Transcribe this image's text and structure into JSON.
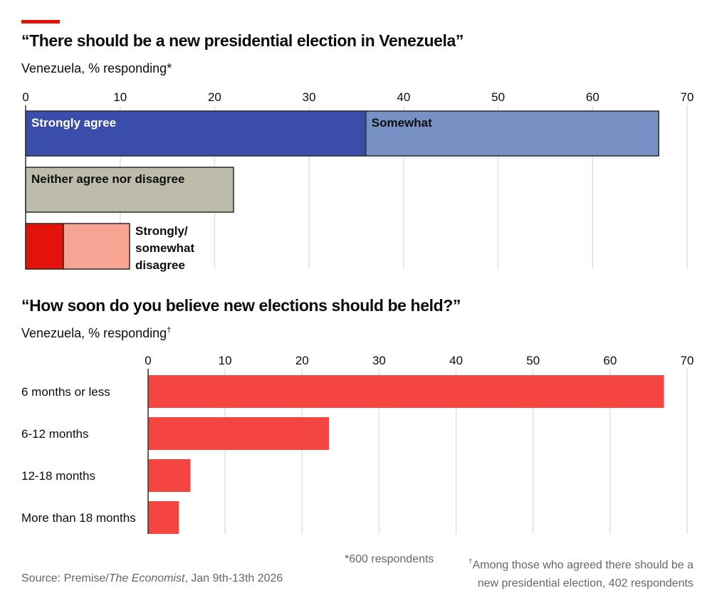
{
  "colors": {
    "accent": "#e3120b",
    "strongly_agree": "#3a4dab",
    "somewhat_agree": "#7791c5",
    "neither": "#bdbcab",
    "strongly_disagree": "#e3120b",
    "somewhat_disagree": "#f8a495",
    "timing_bar": "#f44540",
    "gridline": "#e0e0e0"
  },
  "chart_data": [
    {
      "type": "bar",
      "orientation": "horizontal",
      "stacked": true,
      "title": "“There should be a new presidential election in Venezuela”",
      "subtitle": "Venezuela, % responding",
      "subtitle_mark": "*",
      "xlim": [
        0,
        70
      ],
      "xticks": [
        0,
        10,
        20,
        30,
        40,
        50,
        60,
        70
      ],
      "grid": true,
      "categories": [
        "Agree",
        "Neither agree nor disagree",
        "Disagree"
      ],
      "series": [
        {
          "name": "Strongly agree",
          "category": "Agree",
          "value": 36,
          "color_key": "strongly_agree",
          "label_color": "#ffffff"
        },
        {
          "name": "Somewhat",
          "category": "Agree",
          "value": 31,
          "color_key": "somewhat_agree",
          "label_color": "#0d0d0d"
        },
        {
          "name": "Neither agree nor disagree",
          "category": "Neither agree nor disagree",
          "value": 22,
          "color_key": "neither",
          "label_color": "#0d0d0d"
        },
        {
          "name": "Strongly disagree",
          "category": "Disagree",
          "value": 4,
          "color_key": "strongly_disagree",
          "label_color": null
        },
        {
          "name": "Somewhat disagree",
          "category": "Disagree",
          "value": 7,
          "color_key": "somewhat_disagree",
          "label_color": null
        }
      ],
      "annotation": [
        "Strongly/",
        "somewhat",
        "disagree"
      ]
    },
    {
      "type": "bar",
      "orientation": "horizontal",
      "title": "“How soon do you believe new elections should be held?”",
      "subtitle": "Venezuela, % responding",
      "subtitle_mark": "†",
      "xlim": [
        0,
        70
      ],
      "xticks": [
        0,
        10,
        20,
        30,
        40,
        50,
        60,
        70
      ],
      "grid": true,
      "categories": [
        "6 months or less",
        "6-12 months",
        "12-18 months",
        "More than 18 months"
      ],
      "values": [
        67,
        23.5,
        5.5,
        4
      ]
    }
  ],
  "footer": {
    "source_prefix": "Source: Premise/",
    "source_italic": "The Economist",
    "source_suffix": ", Jan 9th-13th 2026",
    "note1": "*600 respondents",
    "note2_mark": "†",
    "note2_line1": "Among those who agreed there should be a",
    "note2_line2": "new presidential election, 402 respondents"
  }
}
